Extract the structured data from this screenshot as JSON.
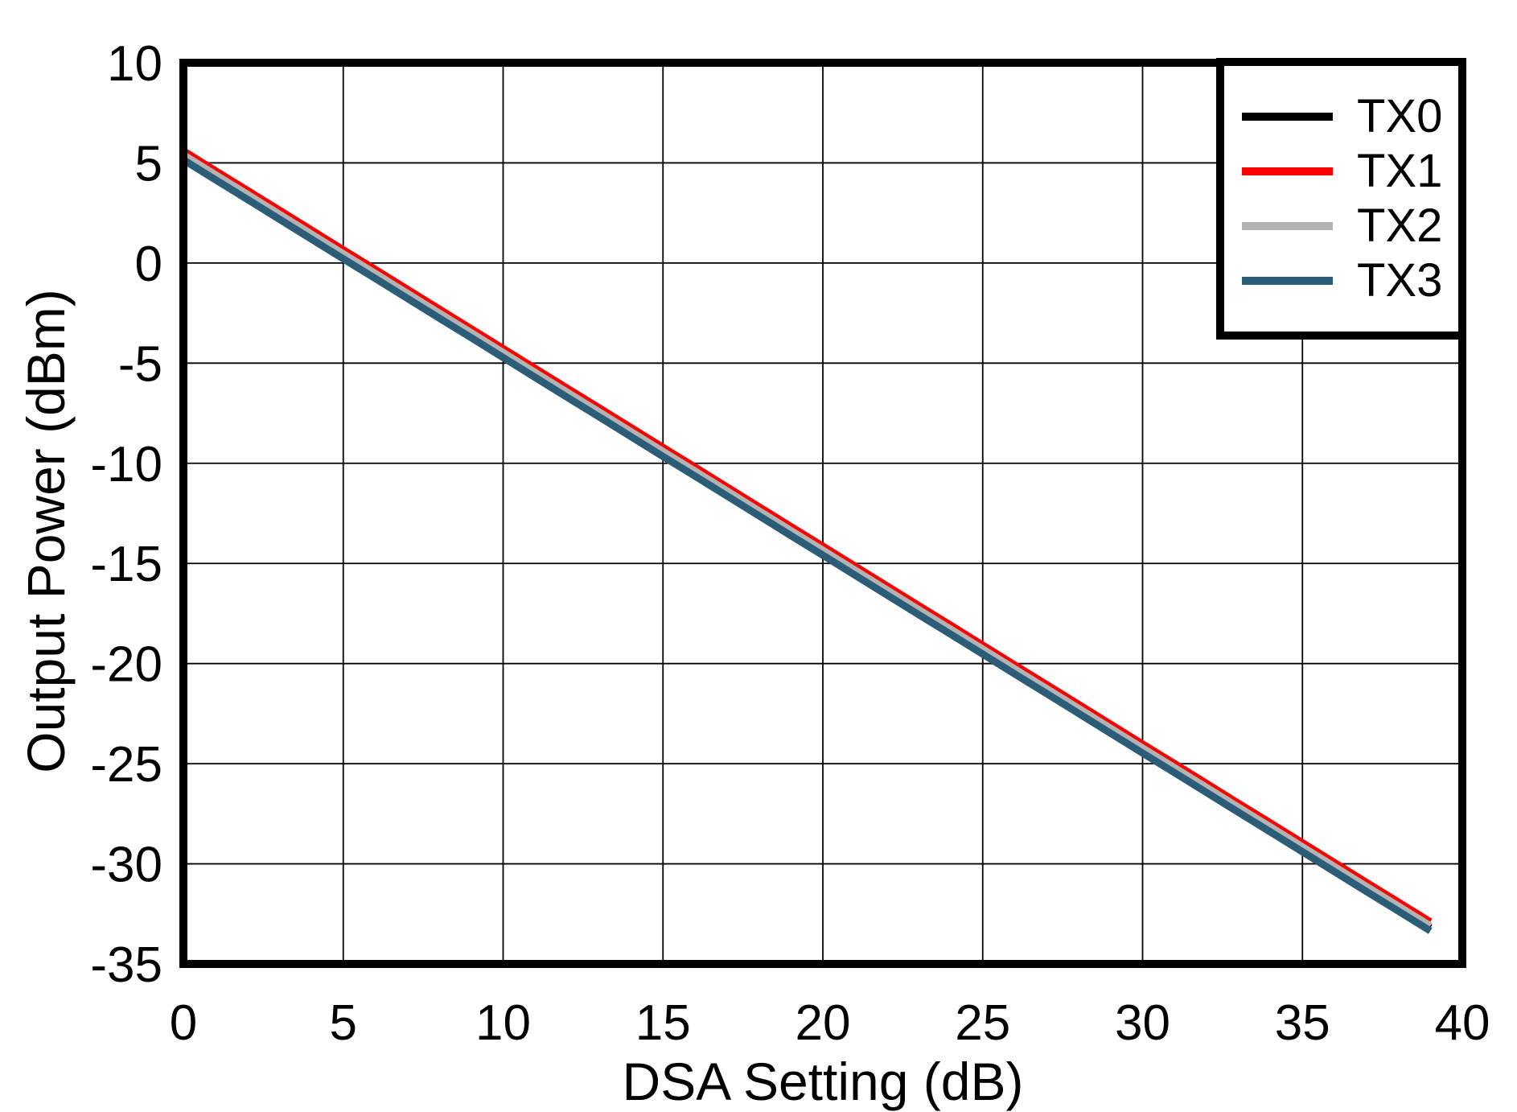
{
  "chart_data": {
    "type": "line",
    "title": "",
    "xlabel": "DSA Setting (dB)",
    "ylabel": "Output Power (dBm)",
    "xlim": [
      0,
      40
    ],
    "ylim": [
      -35,
      10
    ],
    "xticks": [
      0,
      5,
      10,
      15,
      20,
      25,
      30,
      35,
      40
    ],
    "yticks": [
      10,
      5,
      0,
      -5,
      -10,
      -15,
      -20,
      -25,
      -30,
      -35
    ],
    "grid": true,
    "grid_color": "#000000",
    "axis_border_color": "#000000",
    "background_color": "#ffffff",
    "legend_position": "top-right",
    "x": [
      0,
      1,
      2,
      3,
      4,
      5,
      6,
      7,
      8,
      9,
      10,
      11,
      12,
      13,
      14,
      15,
      16,
      17,
      18,
      19,
      20,
      21,
      22,
      23,
      24,
      25,
      26,
      27,
      28,
      29,
      30,
      31,
      32,
      33,
      34,
      35,
      36,
      37,
      38,
      39
    ],
    "series": [
      {
        "name": "TX0",
        "color": "#000000",
        "values": [
          5.3,
          4.31,
          3.33,
          2.34,
          1.35,
          0.36,
          -0.62,
          -1.61,
          -2.6,
          -3.58,
          -4.57,
          -5.56,
          -6.55,
          -7.53,
          -8.52,
          -9.51,
          -10.49,
          -11.48,
          -12.47,
          -13.46,
          -14.44,
          -15.43,
          -16.42,
          -17.41,
          -18.39,
          -19.38,
          -20.37,
          -21.35,
          -22.34,
          -23.33,
          -24.32,
          -25.3,
          -26.29,
          -27.28,
          -28.26,
          -29.25,
          -30.24,
          -31.23,
          -32.21,
          -33.2
        ]
      },
      {
        "name": "TX1",
        "color": "#ff0000",
        "values": [
          5.6,
          4.61,
          3.63,
          2.64,
          1.65,
          0.66,
          -0.32,
          -1.31,
          -2.3,
          -3.28,
          -4.27,
          -5.26,
          -6.25,
          -7.23,
          -8.22,
          -9.21,
          -10.19,
          -11.18,
          -12.17,
          -13.16,
          -14.14,
          -15.13,
          -16.12,
          -17.11,
          -18.09,
          -19.08,
          -20.07,
          -21.05,
          -22.04,
          -23.03,
          -24.02,
          -25.0,
          -25.99,
          -26.98,
          -27.96,
          -28.95,
          -29.94,
          -30.93,
          -31.91,
          -32.9
        ]
      },
      {
        "name": "TX2",
        "color": "#b3b3b3",
        "values": [
          5.4,
          4.41,
          3.43,
          2.44,
          1.45,
          0.46,
          -0.52,
          -1.51,
          -2.5,
          -3.48,
          -4.47,
          -5.46,
          -6.45,
          -7.43,
          -8.42,
          -9.41,
          -10.39,
          -11.38,
          -12.37,
          -13.36,
          -14.34,
          -15.33,
          -16.32,
          -17.31,
          -18.29,
          -19.28,
          -20.27,
          -21.25,
          -22.24,
          -23.23,
          -24.22,
          -25.2,
          -26.19,
          -27.18,
          -28.16,
          -29.15,
          -30.14,
          -31.13,
          -32.11,
          -33.1
        ]
      },
      {
        "name": "TX3",
        "color": "#2b5d78",
        "values": [
          5.15,
          4.16,
          3.18,
          2.19,
          1.2,
          0.21,
          -0.77,
          -1.76,
          -2.75,
          -3.73,
          -4.72,
          -5.71,
          -6.7,
          -7.68,
          -8.67,
          -9.66,
          -10.64,
          -11.63,
          -12.62,
          -13.61,
          -14.59,
          -15.58,
          -16.57,
          -17.56,
          -18.54,
          -19.53,
          -20.52,
          -21.5,
          -22.49,
          -23.48,
          -24.47,
          -25.45,
          -26.44,
          -27.43,
          -28.41,
          -29.4,
          -30.39,
          -31.38,
          -32.36,
          -33.35
        ]
      }
    ]
  }
}
